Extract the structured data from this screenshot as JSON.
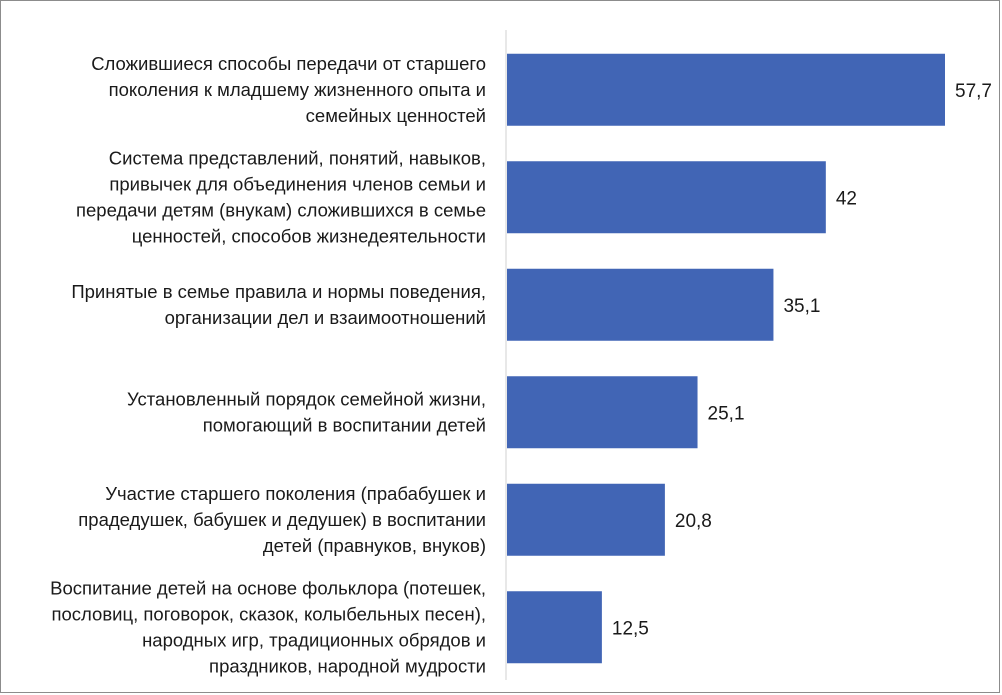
{
  "chart_data": {
    "type": "bar",
    "orientation": "horizontal",
    "categories": [
      [
        "Сложившиеся способы передачи от старшего",
        "поколения к младшему жизненного опыта и",
        "семейных ценностей"
      ],
      [
        "Система представлений, понятий, навыков,",
        "привычек для объединения членов семьи и",
        "передачи детям (внукам) сложившихся в семье",
        "ценностей, способов жизнедеятельности"
      ],
      [
        "Принятые в семье правила и нормы поведения,",
        "организации дел и взаимоотношений"
      ],
      [
        "Установленный порядок семейной жизни,",
        "помогающий в воспитании детей"
      ],
      [
        "Участие старшего поколения (прабабушек и",
        "прадедушек, бабушек и дедушек) в воспитании",
        "детей (правнуков, внуков)"
      ],
      [
        "Воспитание детей на основе фольклора (потешек,",
        "пословиц, поговорок, сказок, колыбельных песен),",
        "народных игр, традиционных обрядов и",
        "праздников, народной мудрости"
      ]
    ],
    "values": [
      57.7,
      42,
      35.1,
      25.1,
      20.8,
      12.5
    ],
    "value_labels": [
      "57,7",
      "42",
      "35,1",
      "25,1",
      "20,8",
      "12,5"
    ],
    "xlim": [
      0,
      57.7
    ],
    "bar_color": "#4165b5",
    "grid": false,
    "legend": "none"
  }
}
